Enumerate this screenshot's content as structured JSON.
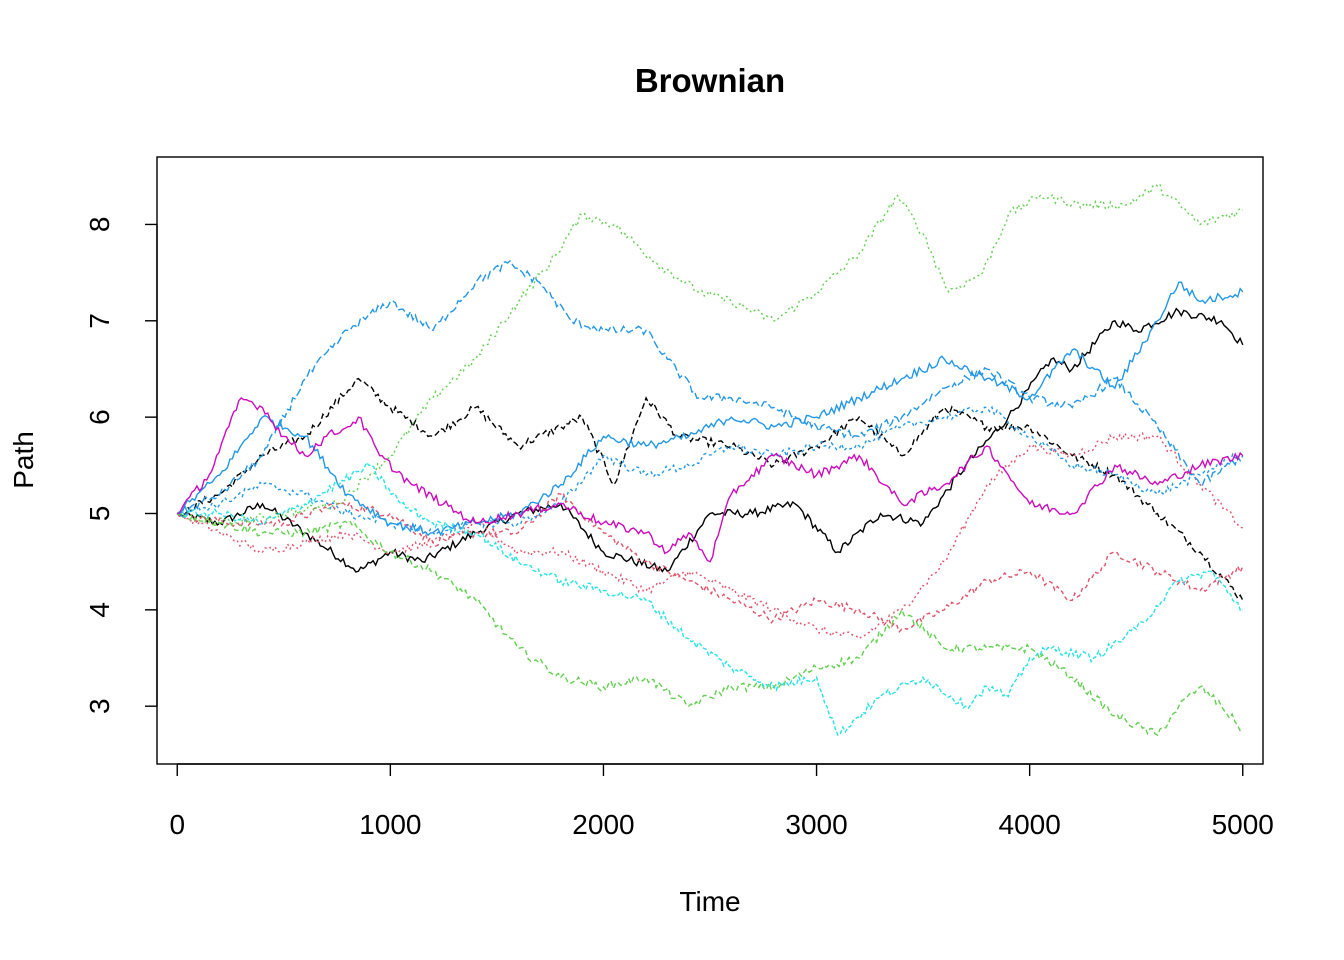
{
  "chart_data": {
    "type": "line",
    "title": "Brownian",
    "xlabel": "Time",
    "ylabel": "Path",
    "xlim": [
      -95,
      5095
    ],
    "ylim": [
      2.4,
      8.7
    ],
    "x_ticks": [
      0,
      1000,
      2000,
      3000,
      4000,
      5000
    ],
    "y_ticks": [
      3,
      4,
      5,
      6,
      7,
      8
    ],
    "grid": false,
    "legend": "none",
    "series": [
      {
        "color": "#000000",
        "dash": "solid",
        "x": [
          0,
          200,
          400,
          600,
          850,
          1000,
          1150,
          1400,
          1600,
          1800,
          2000,
          2300,
          2500,
          2700,
          2900,
          3100,
          3300,
          3500,
          3700,
          3900,
          4100,
          4200,
          4400,
          4500,
          4700,
          4900,
          5000
        ],
        "values": [
          5.0,
          4.9,
          5.1,
          4.8,
          4.4,
          4.6,
          4.5,
          4.8,
          5.0,
          5.1,
          4.6,
          4.4,
          5.0,
          5.0,
          5.1,
          4.6,
          5.0,
          4.9,
          5.5,
          6.0,
          6.6,
          6.5,
          7.0,
          6.9,
          7.1,
          7.0,
          6.75
        ]
      },
      {
        "color": "#000000",
        "dash": "6,3",
        "x": [
          0,
          200,
          400,
          600,
          850,
          1000,
          1200,
          1400,
          1600,
          1800,
          1900,
          2050,
          2200,
          2350,
          2600,
          2800,
          3000,
          3200,
          3400,
          3600,
          3800,
          4000,
          4200,
          4400,
          4600,
          4800,
          5000
        ],
        "values": [
          5.0,
          5.2,
          5.6,
          5.8,
          6.4,
          6.1,
          5.8,
          6.1,
          5.7,
          5.9,
          6.0,
          5.3,
          6.2,
          5.8,
          5.7,
          5.5,
          5.7,
          6.0,
          5.6,
          6.1,
          5.9,
          5.9,
          5.6,
          5.4,
          5.0,
          4.6,
          4.1
        ]
      },
      {
        "color": "#DF536B",
        "dash": "4,3",
        "x": [
          0,
          250,
          500,
          750,
          1000,
          1200,
          1400,
          1600,
          1800,
          2000,
          2200,
          2400,
          2600,
          2800,
          3000,
          3200,
          3400,
          3600,
          3800,
          4000,
          4200,
          4400,
          4600,
          4800,
          5000
        ],
        "values": [
          5.0,
          4.9,
          4.9,
          5.1,
          5.0,
          4.7,
          4.8,
          4.8,
          5.2,
          4.8,
          4.5,
          4.3,
          4.1,
          3.9,
          4.1,
          4.0,
          3.8,
          4.0,
          4.3,
          4.4,
          4.1,
          4.6,
          4.4,
          4.2,
          4.45
        ]
      },
      {
        "color": "#DF536B",
        "dash": "2,3",
        "x": [
          0,
          200,
          400,
          600,
          800,
          1000,
          1200,
          1400,
          1600,
          1800,
          2000,
          2200,
          2400,
          2600,
          2800,
          3000,
          3200,
          3400,
          3600,
          3800,
          4000,
          4200,
          4400,
          4600,
          4800,
          5000
        ],
        "values": [
          5.0,
          4.8,
          4.6,
          4.7,
          4.8,
          4.6,
          4.7,
          4.9,
          4.6,
          4.6,
          4.4,
          4.2,
          4.4,
          4.2,
          4.0,
          3.8,
          3.7,
          4.0,
          4.5,
          5.3,
          5.7,
          5.6,
          5.8,
          5.8,
          5.3,
          4.85
        ]
      },
      {
        "color": "#61D04F",
        "dash": "2,3",
        "x": [
          0,
          250,
          500,
          750,
          1000,
          1200,
          1400,
          1600,
          1750,
          1900,
          2050,
          2250,
          2450,
          2600,
          2800,
          3000,
          3200,
          3380,
          3500,
          3620,
          3780,
          3900,
          4050,
          4250,
          4450,
          4600,
          4800,
          5000
        ],
        "values": [
          5.0,
          4.9,
          5.0,
          5.1,
          5.6,
          6.2,
          6.6,
          7.2,
          7.6,
          8.1,
          8.0,
          7.6,
          7.3,
          7.2,
          7.0,
          7.3,
          7.7,
          8.3,
          7.9,
          7.3,
          7.5,
          8.1,
          8.3,
          8.2,
          8.2,
          8.4,
          8.0,
          8.15
        ]
      },
      {
        "color": "#61D04F",
        "dash": "5,3",
        "x": [
          0,
          200,
          400,
          600,
          800,
          1000,
          1200,
          1400,
          1600,
          1800,
          2000,
          2200,
          2400,
          2600,
          2800,
          3000,
          3200,
          3400,
          3600,
          3800,
          4000,
          4200,
          4400,
          4600,
          4700,
          4800,
          4900,
          5000
        ],
        "values": [
          5.0,
          4.9,
          4.8,
          4.8,
          4.9,
          4.6,
          4.4,
          4.1,
          3.6,
          3.3,
          3.2,
          3.3,
          3.0,
          3.2,
          3.2,
          3.4,
          3.5,
          4.0,
          3.6,
          3.6,
          3.6,
          3.3,
          2.9,
          2.7,
          3.0,
          3.2,
          3.0,
          2.75
        ]
      },
      {
        "color": "#2297E6",
        "dash": "8,3",
        "x": [
          0,
          200,
          400,
          600,
          800,
          1000,
          1200,
          1400,
          1550,
          1700,
          1850,
          2000,
          2200,
          2300,
          2450,
          2600,
          2800,
          3000,
          3200,
          3400,
          3600,
          3800,
          4000,
          4200,
          4400,
          4600,
          4800,
          5000
        ],
        "values": [
          5.0,
          5.2,
          5.6,
          6.4,
          6.9,
          7.2,
          6.9,
          7.4,
          7.6,
          7.4,
          7.0,
          6.9,
          6.9,
          6.6,
          6.2,
          6.2,
          6.1,
          5.9,
          5.8,
          6.0,
          6.3,
          6.5,
          6.2,
          6.1,
          6.4,
          5.9,
          5.3,
          5.6
        ]
      },
      {
        "color": "#2297E6",
        "dash": "solid",
        "x": [
          0,
          200,
          400,
          600,
          800,
          1000,
          1200,
          1400,
          1600,
          1800,
          2000,
          2200,
          2400,
          2600,
          2800,
          3000,
          3200,
          3400,
          3600,
          3800,
          4000,
          4200,
          4400,
          4600,
          4700,
          4800,
          5000
        ],
        "values": [
          5.0,
          5.4,
          6.0,
          5.8,
          5.2,
          4.9,
          4.8,
          4.9,
          5.0,
          5.3,
          5.8,
          5.7,
          5.8,
          6.0,
          5.9,
          6.0,
          6.2,
          6.4,
          6.6,
          6.4,
          6.2,
          6.7,
          6.3,
          7.0,
          7.4,
          7.2,
          7.3
        ]
      },
      {
        "color": "#2297E6",
        "dash": "3,3",
        "x": [
          0,
          200,
          400,
          600,
          800,
          1000,
          1200,
          1400,
          1600,
          1800,
          2000,
          2200,
          2400,
          2600,
          2800,
          3000,
          3200,
          3400,
          3600,
          3800,
          4000,
          4200,
          4400,
          4600,
          4800,
          5000
        ],
        "values": [
          5.0,
          5.1,
          5.3,
          5.2,
          5.0,
          4.9,
          4.8,
          4.9,
          4.9,
          5.1,
          5.6,
          5.4,
          5.5,
          5.7,
          5.6,
          5.7,
          5.7,
          5.9,
          6.0,
          6.1,
          5.8,
          5.5,
          5.4,
          5.2,
          5.4,
          5.65
        ]
      },
      {
        "color": "#28E2E5",
        "dash": "4,2",
        "x": [
          0,
          200,
          400,
          600,
          750,
          900,
          1050,
          1200,
          1400,
          1600,
          1800,
          2000,
          2200,
          2400,
          2600,
          2800,
          3000,
          3100,
          3300,
          3500,
          3700,
          3800,
          3900,
          4000,
          4100,
          4300,
          4500,
          4700,
          4850,
          5000
        ],
        "values": [
          5.0,
          5.0,
          4.9,
          5.1,
          5.3,
          5.5,
          5.1,
          4.9,
          4.8,
          4.5,
          4.3,
          4.2,
          4.1,
          3.7,
          3.4,
          3.2,
          3.3,
          2.7,
          3.1,
          3.3,
          3.0,
          3.2,
          3.1,
          3.5,
          3.6,
          3.5,
          3.8,
          4.3,
          4.4,
          4.0
        ]
      },
      {
        "color": "#CD0BBC",
        "dash": "solid",
        "x": [
          0,
          150,
          300,
          400,
          500,
          600,
          700,
          800,
          850,
          950,
          1100,
          1250,
          1400,
          1600,
          1800,
          2000,
          2200,
          2300,
          2400,
          2500,
          2600,
          2800,
          3000,
          3200,
          3400,
          3600,
          3800,
          3900,
          4000,
          4200,
          4400,
          4600,
          4800,
          5000
        ],
        "values": [
          5.0,
          5.4,
          6.2,
          6.1,
          5.8,
          5.6,
          5.8,
          5.9,
          6.0,
          5.6,
          5.3,
          5.1,
          4.9,
          5.0,
          5.1,
          4.9,
          4.8,
          4.6,
          4.8,
          4.5,
          5.2,
          5.6,
          5.4,
          5.6,
          5.1,
          5.3,
          5.7,
          5.4,
          5.1,
          5.0,
          5.5,
          5.3,
          5.5,
          5.6
        ]
      }
    ]
  }
}
